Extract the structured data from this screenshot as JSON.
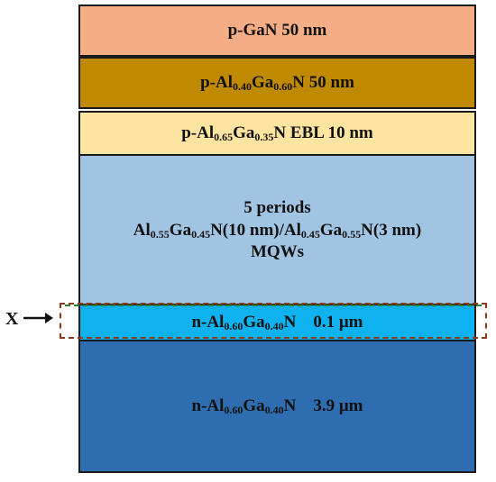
{
  "layers": [
    {
      "name": "p-GaN-cap",
      "parts": [
        {
          "t": "p-GaN 50 nm"
        }
      ],
      "color": "#f4ad84"
    },
    {
      "name": "p-AlGaN",
      "parts": [
        {
          "t": "p-Al"
        },
        {
          "s": "0.40"
        },
        {
          "t": "Ga"
        },
        {
          "s": "0.60"
        },
        {
          "t": "N 50 nm"
        }
      ],
      "color": "#c08a00"
    },
    {
      "name": "p-AlGaN-EBL",
      "parts": [
        {
          "t": "p-Al"
        },
        {
          "s": "0.65"
        },
        {
          "t": "Ga"
        },
        {
          "s": "0.35"
        },
        {
          "t": "N EBL 10 nm"
        }
      ],
      "color": "#fde4a0"
    },
    {
      "name": "MQWs",
      "lines": [
        [
          {
            "t": "5 periods"
          }
        ],
        [
          {
            "t": "Al"
          },
          {
            "s": "0.55"
          },
          {
            "t": "Ga"
          },
          {
            "s": "0.45"
          },
          {
            "t": "N(10 nm)/Al"
          },
          {
            "s": "0.45"
          },
          {
            "t": "Ga"
          },
          {
            "s": "0.55"
          },
          {
            "t": "N(3 nm)"
          }
        ],
        [
          {
            "t": "MQWs"
          }
        ]
      ],
      "color": "#a2c4e3"
    },
    {
      "name": "n-AlGaN-thin",
      "parts": [
        {
          "t": "n-Al"
        },
        {
          "s": "0.60"
        },
        {
          "t": "Ga"
        },
        {
          "s": "0.40"
        },
        {
          "t": "N    0.1 μm"
        }
      ],
      "color": "#0db2ee"
    },
    {
      "name": "n-AlGaN-thick",
      "parts": [
        {
          "t": "n-Al"
        },
        {
          "s": "0.60"
        },
        {
          "t": "Ga"
        },
        {
          "s": "0.40"
        },
        {
          "t": "N    3.9 μm"
        }
      ],
      "color": "#2e6db0"
    }
  ],
  "marker": {
    "label": "X",
    "arrow": "right-arrow",
    "box_color": "#8b3a1a",
    "inner_line_color": "#2e7d32"
  }
}
